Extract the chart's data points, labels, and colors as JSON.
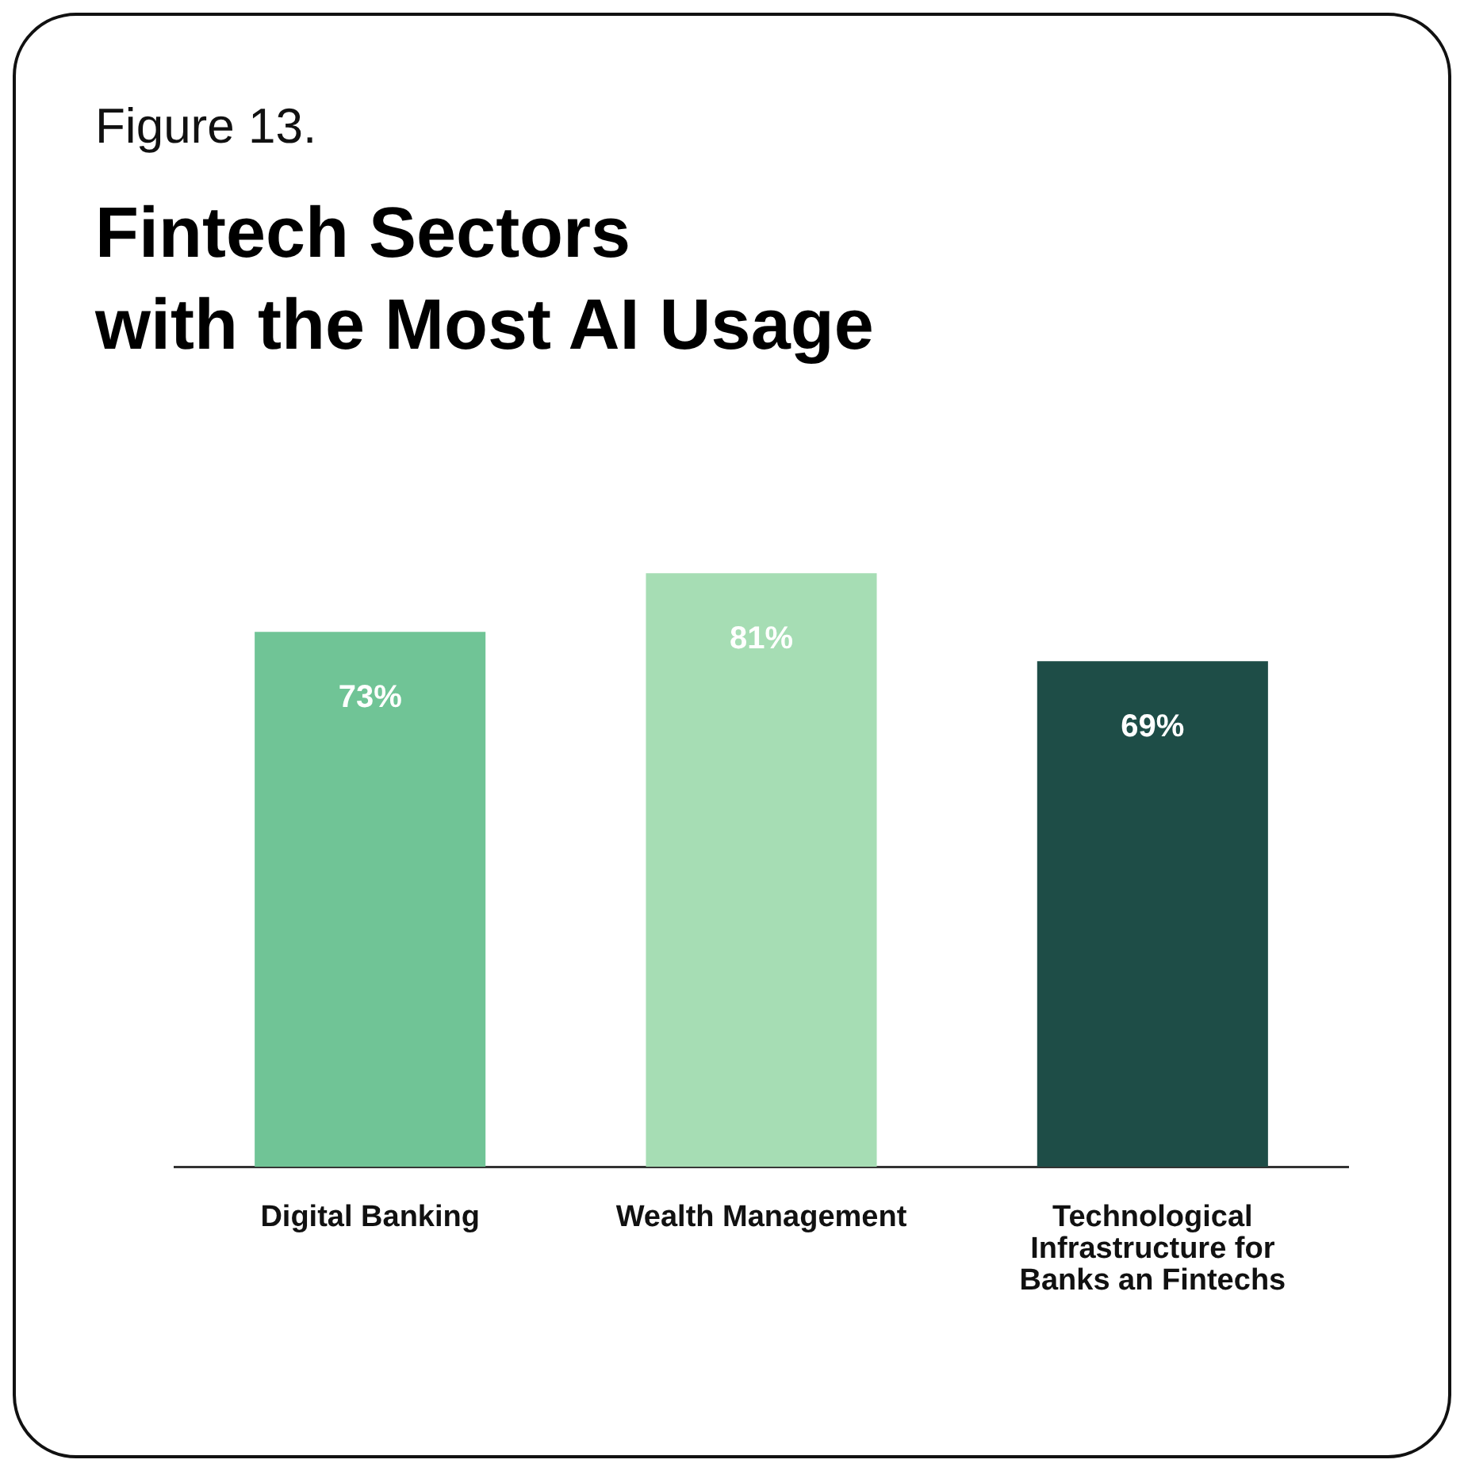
{
  "chart_data": {
    "type": "bar",
    "subtitle": "Figure 13.",
    "title": "Fintech Sectors with the Most AI Usage",
    "categories": [
      "Digital Banking",
      "Wealth Management",
      "Technological Infrastructure for Banks an Fintechs"
    ],
    "values": [
      73,
      81,
      69
    ],
    "colors": [
      "#70c496",
      "#a6ddb4",
      "#1e4d47"
    ],
    "value_labels": [
      "73%",
      "81%",
      "69%"
    ],
    "grid": false,
    "legend": false
  }
}
